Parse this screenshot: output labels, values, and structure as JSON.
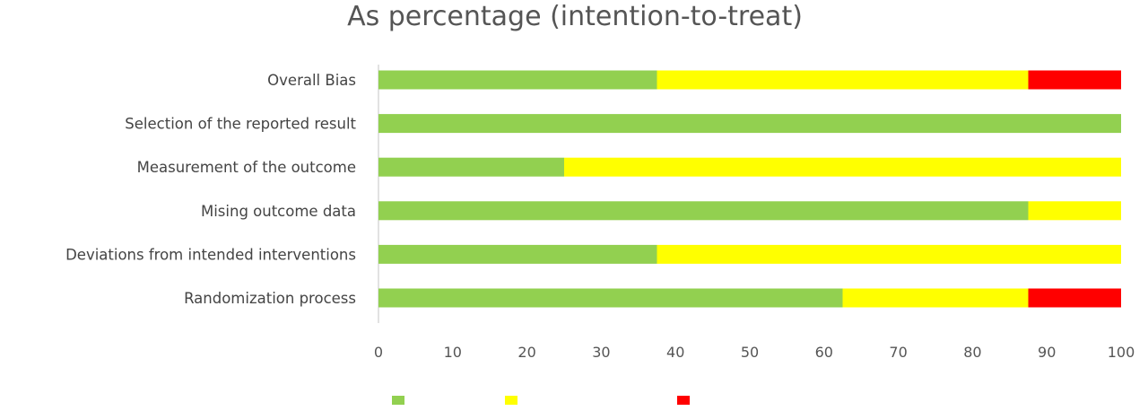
{
  "chart_data": {
    "type": "bar",
    "orientation": "horizontal",
    "stacked": true,
    "title": "As percentage (intention-to-treat)",
    "xlabel": "",
    "ylabel": "",
    "xlim": [
      0,
      100
    ],
    "x_ticks": [
      0,
      10,
      20,
      30,
      40,
      50,
      60,
      70,
      80,
      90,
      100
    ],
    "grid": false,
    "legend_position": "bottom",
    "categories": [
      "Overall Bias",
      "Selection of the reported result",
      "Measurement of the outcome",
      "Mising outcome data",
      "Deviations from intended interventions",
      "Randomization process"
    ],
    "series": [
      {
        "name": "",
        "color": "#92d050",
        "values": [
          37.5,
          100,
          25,
          87.5,
          37.5,
          62.5
        ]
      },
      {
        "name": "",
        "color": "#ffff00",
        "values": [
          50,
          0,
          75,
          12.5,
          62.5,
          25
        ]
      },
      {
        "name": "",
        "color": "#ff0000",
        "values": [
          12.5,
          0,
          0,
          0,
          0,
          12.5
        ]
      }
    ]
  }
}
